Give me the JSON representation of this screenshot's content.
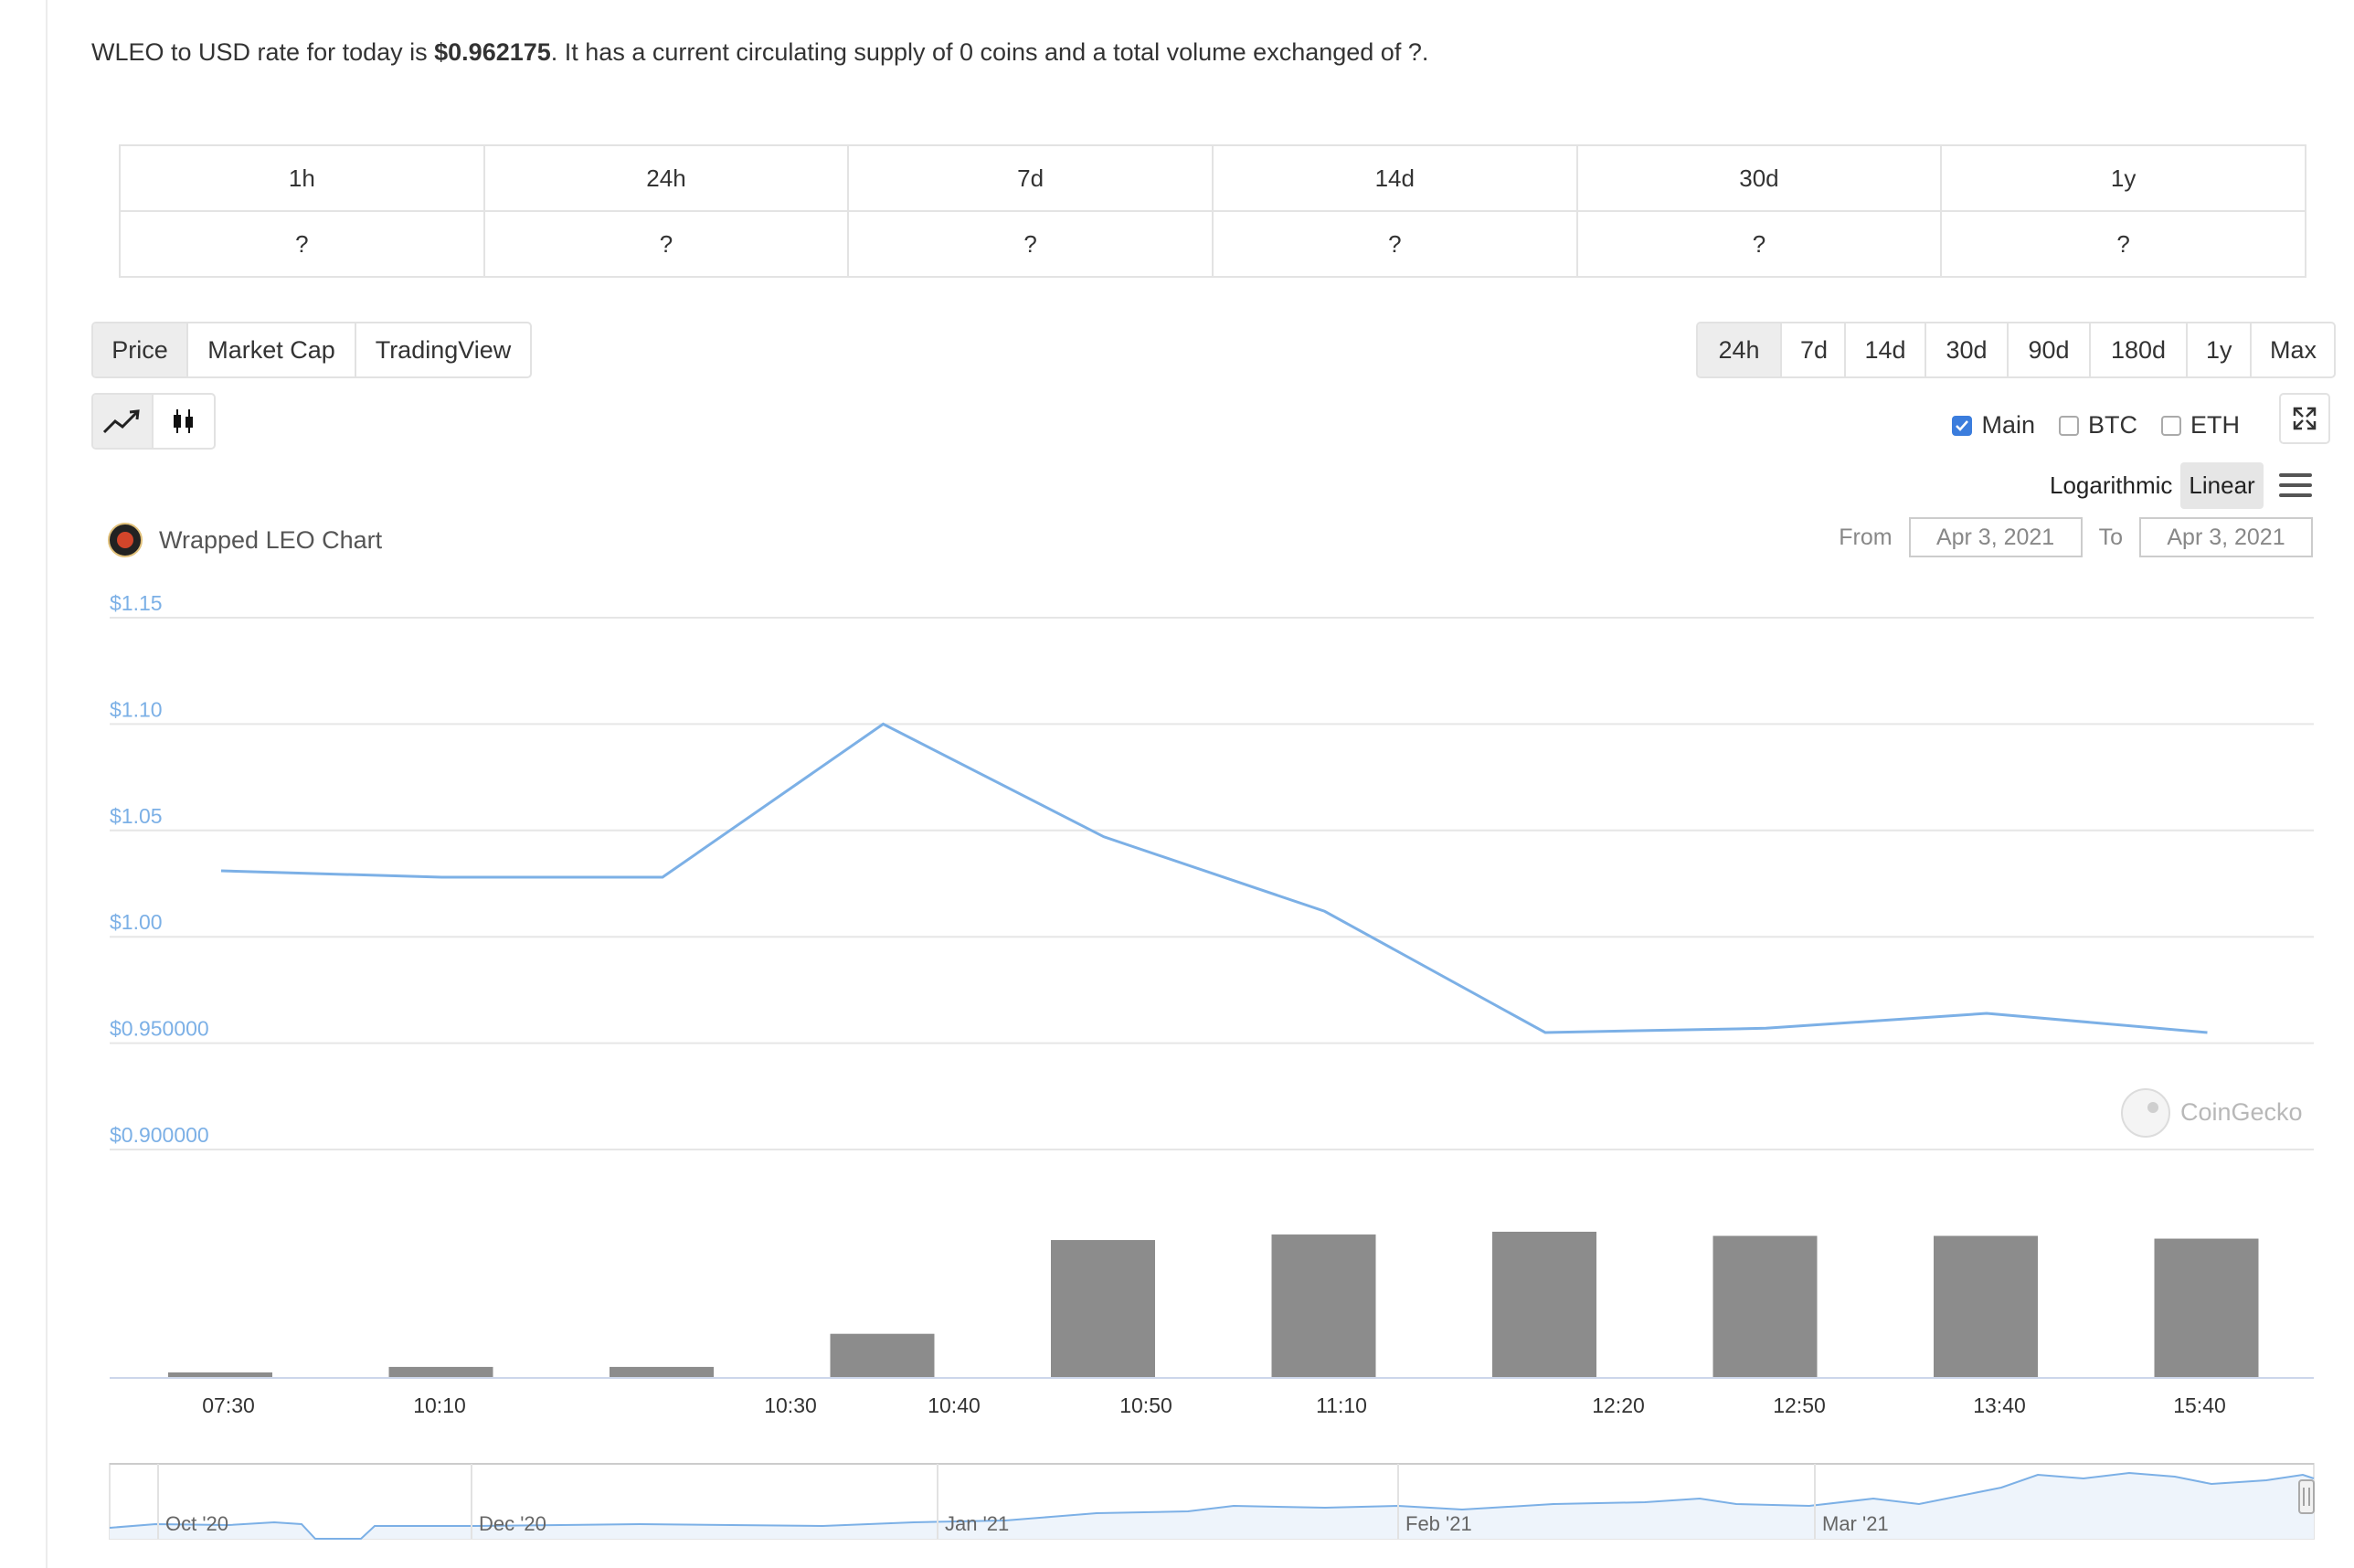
{
  "intro": {
    "prefix": "WLEO to USD rate for today is ",
    "price": "$0.962175",
    "suffix": ". It has a current circulating supply of 0 coins and a total volume exchanged of ?."
  },
  "performance": {
    "headers": [
      "1h",
      "24h",
      "7d",
      "14d",
      "30d",
      "1y"
    ],
    "values": [
      "?",
      "?",
      "?",
      "?",
      "?",
      "?"
    ]
  },
  "chart_tabs": [
    {
      "label": "Price",
      "active": true
    },
    {
      "label": "Market Cap",
      "active": false
    },
    {
      "label": "TradingView",
      "active": false
    }
  ],
  "range_tabs": [
    {
      "label": "24h",
      "active": true
    },
    {
      "label": "7d",
      "active": false
    },
    {
      "label": "14d",
      "active": false
    },
    {
      "label": "30d",
      "active": false
    },
    {
      "label": "90d",
      "active": false
    },
    {
      "label": "180d",
      "active": false
    },
    {
      "label": "1y",
      "active": false
    },
    {
      "label": "Max",
      "active": false
    }
  ],
  "chart_type_icons": [
    "line-chart-icon",
    "candlestick-icon"
  ],
  "compare": [
    {
      "label": "Main",
      "checked": true
    },
    {
      "label": "BTC",
      "checked": false
    },
    {
      "label": "ETH",
      "checked": false
    }
  ],
  "scale": {
    "logarithmic": "Logarithmic",
    "linear": "Linear",
    "active": "linear"
  },
  "chart_header": {
    "title": "Wrapped LEO Chart"
  },
  "date_range": {
    "from_label": "From",
    "from_value": "Apr 3, 2021",
    "to_label": "To",
    "to_value": "Apr 3, 2021"
  },
  "watermark": "CoinGecko",
  "colors": {
    "line": "#7cb0e6",
    "volume": "#8c8c8c",
    "axis_label": "#7cb0e6",
    "accent_check": "#3b7ddd"
  },
  "chart_data": {
    "type": "line",
    "title": "Wrapped LEO Chart",
    "y_ticks": [
      "$1.15",
      "$1.10",
      "$1.05",
      "$1.00",
      "$0.950000",
      "$0.900000"
    ],
    "ylim": [
      0.9,
      1.15
    ],
    "x_tick_labels": [
      "07:30",
      "10:10",
      "10:30",
      "10:40",
      "10:50",
      "11:10",
      "12:20",
      "12:50",
      "13:40",
      "15:40"
    ],
    "price_series": {
      "name": "Price",
      "values": [
        1.031,
        1.028,
        1.028,
        1.1,
        1.047,
        1.012,
        0.955,
        0.957,
        0.964,
        0.955
      ]
    },
    "volume_series": {
      "name": "Volume",
      "values": [
        0.04,
        0.08,
        0.08,
        0.32,
        1.0,
        1.04,
        1.06,
        1.03,
        1.03,
        1.01
      ]
    },
    "navigator": {
      "labels": [
        "Oct '20",
        "Dec '20",
        "Jan '21",
        "Feb '21",
        "Mar '21"
      ]
    },
    "grid": true,
    "legend": "none"
  }
}
